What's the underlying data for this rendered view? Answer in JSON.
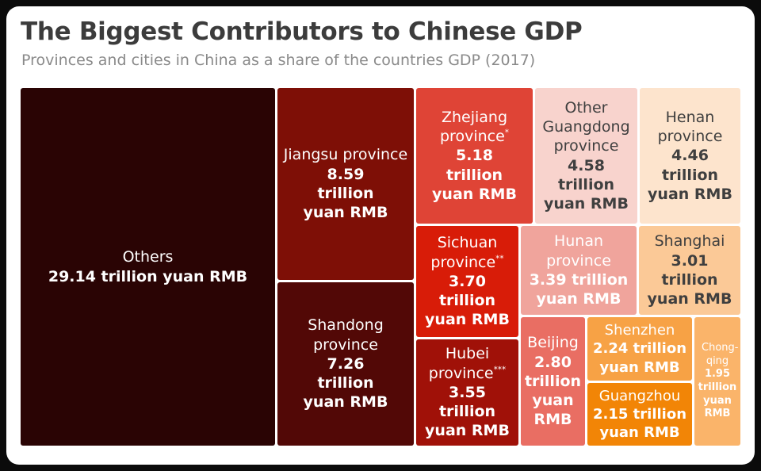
{
  "header": {
    "title": "The Biggest Contributors to Chinese GDP",
    "subtitle": "Provinces and cities in China as a share of the countries GDP (2017)"
  },
  "chart_data": {
    "type": "treemap",
    "unit": "trillion yuan RMB",
    "items": [
      {
        "name": "Others",
        "mark": "",
        "value": 29.14,
        "name_text": "Others",
        "value_text": "29.14 trillion yuan RMB",
        "color": "#2a0404",
        "text_color": "#ffffff"
      },
      {
        "name": "Jiangsu province",
        "mark": "",
        "value": 8.59,
        "name_text": "Jiangsu province",
        "value_text": "8.59 trillion yuan RMB",
        "color": "#7e0f06",
        "text_color": "#ffffff"
      },
      {
        "name": "Shandong province",
        "mark": "",
        "value": 7.26,
        "name_text": "Shandong province",
        "value_text": "7.26 trillion yuan RMB",
        "color": "#520806",
        "text_color": "#ffffff"
      },
      {
        "name": "Zhejiang province",
        "mark": "*",
        "value": 5.18,
        "name_text": "Zhejiang province",
        "value_text": "5.18 trillion yuan RMB",
        "color": "#df4436",
        "text_color": "#ffffff"
      },
      {
        "name": "Other Guangdong province",
        "mark": "",
        "value": 4.58,
        "name_text": "Other Guangdong province",
        "value_text": "4.58 trillion yuan RMB",
        "color": "#f8d3cd",
        "text_color": "#3f3f3f"
      },
      {
        "name": "Henan province",
        "mark": "",
        "value": 4.46,
        "name_text": "Henan province",
        "value_text": "4.46 trillion yuan RMB",
        "color": "#fde4cd",
        "text_color": "#3f3f3f"
      },
      {
        "name": "Sichuan province",
        "mark": "**",
        "value": 3.7,
        "name_text": "Sichuan province",
        "value_text": "3.70 trillion yuan RMB",
        "color": "#d81c08",
        "text_color": "#ffffff"
      },
      {
        "name": "Hunan province",
        "mark": "",
        "value": 3.39,
        "name_text": "Hunan province",
        "value_text": "3.39 trillion yuan RMB",
        "color": "#f0a49c",
        "text_color": "#ffffff"
      },
      {
        "name": "Shanghai",
        "mark": "",
        "value": 3.01,
        "name_text": "Shanghai",
        "value_text": "3.01 trillion yuan RMB",
        "color": "#fbc997",
        "text_color": "#3f3f3f"
      },
      {
        "name": "Hubei province",
        "mark": "***",
        "value": 3.55,
        "name_text": "Hubei province",
        "value_text": "3.55 trillion yuan RMB",
        "color": "#a01108",
        "text_color": "#ffffff"
      },
      {
        "name": "Beijing",
        "mark": "",
        "value": 2.8,
        "name_text": "Beijing",
        "value_text": "2.80 trillion yuan RMB",
        "color": "#e96e63",
        "text_color": "#ffffff"
      },
      {
        "name": "Shenzhen",
        "mark": "",
        "value": 2.24,
        "name_text": "Shenzhen",
        "value_text": "2.24 trillion yuan RMB",
        "color": "#f7a245",
        "text_color": "#ffffff"
      },
      {
        "name": "Guangzhou",
        "mark": "",
        "value": 2.15,
        "name_text": "Guangzhou",
        "value_text": "2.15 trillion yuan RMB",
        "color": "#f28506",
        "text_color": "#ffffff"
      },
      {
        "name": "Chongqing",
        "mark": "",
        "value": 1.95,
        "name_text": "Chong-qing",
        "value_text": "1.95 trillion yuan RMB",
        "color": "#fab46a",
        "text_color": "#ffffff"
      }
    ]
  }
}
